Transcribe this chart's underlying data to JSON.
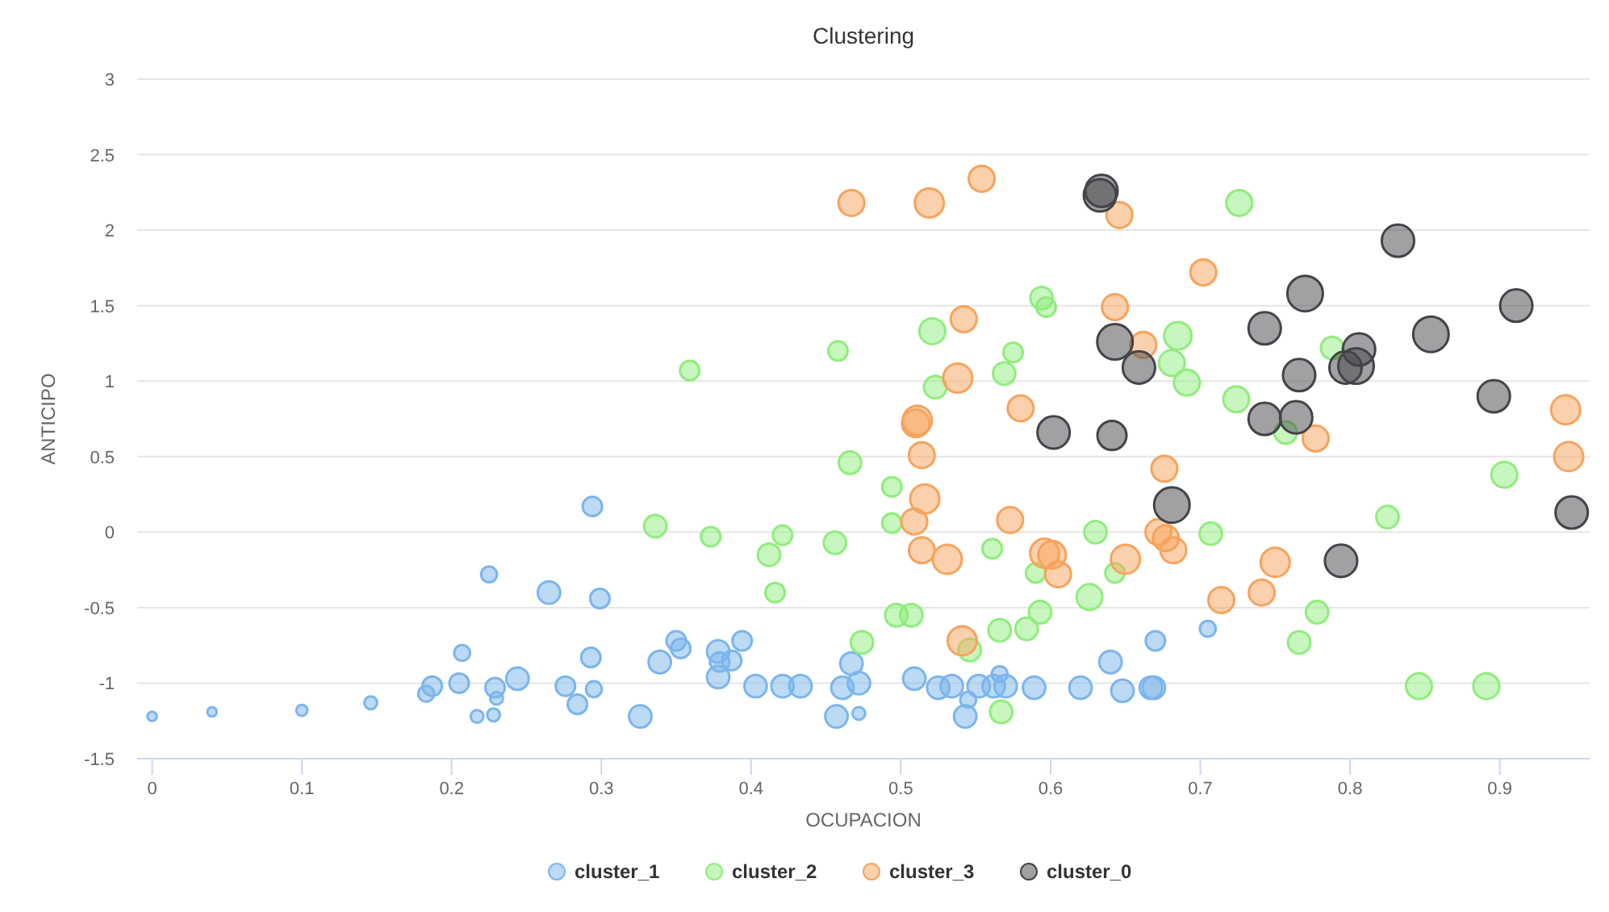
{
  "chart_data": {
    "type": "bubble",
    "title": "Clustering",
    "xlabel": "OCUPACION",
    "ylabel": "ANTICIPO",
    "xlim": [
      -0.01,
      0.96
    ],
    "xticks": [
      0,
      0.1,
      0.2,
      0.3,
      0.4,
      0.5,
      0.6,
      0.7,
      0.8,
      0.9
    ],
    "ylim": [
      -1.5,
      3
    ],
    "yticks": [
      -1.5,
      -1,
      -0.5,
      0,
      0.5,
      1,
      1.5,
      2,
      2.5,
      3
    ],
    "grid": "y",
    "legend": "bottom",
    "series": [
      {
        "name": "cluster_1",
        "color": "#7cb5ec",
        "x": [
          0,
          0.04,
          0.1,
          0.146,
          0.183,
          0.187,
          0.207,
          0.205,
          0.225,
          0.229,
          0.23,
          0.217,
          0.228,
          0.244,
          0.265,
          0.276,
          0.284,
          0.295,
          0.293,
          0.294,
          0.299,
          0.326,
          0.339,
          0.35,
          0.353,
          0.378,
          0.379,
          0.387,
          0.378,
          0.394,
          0.403,
          0.421,
          0.433,
          0.457,
          0.461,
          0.472,
          0.467,
          0.472,
          0.509,
          0.525,
          0.534,
          0.543,
          0.545,
          0.552,
          0.562,
          0.566,
          0.57,
          0.589,
          0.62,
          0.64,
          0.648,
          0.67,
          0.667,
          0.669,
          0.705
        ],
        "values": [
          -1.22,
          -1.19,
          -1.18,
          -1.13,
          -1.07,
          -1.02,
          -0.8,
          -1,
          -0.28,
          -1.03,
          -1.1,
          -1.22,
          -1.21,
          -0.97,
          -0.4,
          -1.02,
          -1.14,
          -1.04,
          -0.83,
          0.17,
          -0.44,
          -1.22,
          -0.86,
          -0.72,
          -0.77,
          -0.79,
          -0.86,
          -0.85,
          -0.96,
          -0.72,
          -1.02,
          -1.02,
          -1.02,
          -1.22,
          -1.03,
          -1,
          -0.87,
          -1.2,
          -0.97,
          -1.03,
          -1.02,
          -1.22,
          -1.11,
          -1.02,
          -1.02,
          -0.94,
          -1.02,
          -1.03,
          -1.03,
          -0.86,
          -1.05,
          -0.72,
          -1.03,
          -1.03,
          -0.64
        ],
        "sizes": [
          0.07,
          0.07,
          0.1,
          0.13,
          0.2,
          0.3,
          0.2,
          0.3,
          0.2,
          0.3,
          0.13,
          0.13,
          0.13,
          0.4,
          0.4,
          0.3,
          0.3,
          0.2,
          0.3,
          0.3,
          0.3,
          0.4,
          0.4,
          0.3,
          0.3,
          0.4,
          0.3,
          0.3,
          0.4,
          0.3,
          0.4,
          0.4,
          0.4,
          0.4,
          0.4,
          0.4,
          0.4,
          0.13,
          0.4,
          0.4,
          0.4,
          0.4,
          0.2,
          0.4,
          0.4,
          0.2,
          0.4,
          0.4,
          0.4,
          0.4,
          0.4,
          0.3,
          0.4,
          0.4,
          0.2
        ]
      },
      {
        "name": "cluster_2",
        "color": "#90ed7d",
        "x": [
          0.359,
          0.336,
          0.373,
          0.412,
          0.421,
          0.416,
          0.456,
          0.466,
          0.494,
          0.494,
          0.497,
          0.507,
          0.474,
          0.546,
          0.567,
          0.566,
          0.584,
          0.593,
          0.561,
          0.59,
          0.626,
          0.63,
          0.643,
          0.458,
          0.521,
          0.523,
          0.569,
          0.575,
          0.594,
          0.597,
          0.602,
          0.726,
          0.685,
          0.681,
          0.691,
          0.724,
          0.788,
          0.757,
          0.903,
          0.825,
          0.707,
          0.778,
          0.766,
          0.846,
          0.891
        ],
        "values": [
          1.07,
          0.04,
          -0.03,
          -0.15,
          -0.02,
          -0.4,
          -0.07,
          0.46,
          0.3,
          0.06,
          -0.55,
          -0.55,
          -0.73,
          -0.78,
          -1.19,
          -0.65,
          -0.64,
          -0.53,
          -0.11,
          -0.27,
          -0.43,
          0,
          -0.27,
          1.2,
          1.33,
          0.96,
          1.05,
          1.19,
          1.55,
          1.49,
          null,
          2.18,
          1.3,
          1.12,
          0.99,
          0.88,
          1.22,
          0.66,
          0.38,
          0.1,
          -0.01,
          -0.53,
          -0.73,
          -1.02,
          -1.02
        ],
        "sizes": [
          0.3,
          0.4,
          0.3,
          0.4,
          0.3,
          0.3,
          0.4,
          0.4,
          0.3,
          0.3,
          0.4,
          0.4,
          0.4,
          0.4,
          0.4,
          0.4,
          0.4,
          0.4,
          0.3,
          0.3,
          0.53,
          0.4,
          0.3,
          0.3,
          0.53,
          0.4,
          0.4,
          0.3,
          0.4,
          0.3,
          null,
          0.53,
          0.6,
          0.53,
          0.53,
          0.53,
          0.4,
          0.4,
          0.53,
          0.4,
          0.4,
          0.4,
          0.4,
          0.53,
          0.53
        ]
      },
      {
        "name": "cluster_3",
        "color": "#f7a35c",
        "x": [
          0.467,
          0.519,
          0.554,
          0.646,
          0.643,
          0.542,
          0.538,
          0.58,
          0.511,
          0.51,
          0.514,
          0.602,
          0.662,
          0.702,
          0.777,
          0.944,
          0.946,
          0.676,
          0.672,
          0.677,
          0.682,
          0.65,
          0.714,
          0.741,
          0.75,
          0.516,
          0.509,
          0.514,
          0.531,
          0.573,
          0.596,
          0.601,
          0.605,
          0.541
        ],
        "values": [
          2.18,
          2.18,
          2.34,
          2.1,
          1.49,
          1.41,
          1.02,
          0.82,
          0.74,
          0.72,
          0.51,
          null,
          1.24,
          1.72,
          0.62,
          0.81,
          0.5,
          0.42,
          0,
          -0.04,
          -0.12,
          -0.18,
          -0.45,
          -0.4,
          -0.2,
          0.22,
          0.07,
          -0.12,
          -0.18,
          0.08,
          -0.14,
          -0.15,
          -0.28,
          -0.72
        ],
        "sizes": [
          0.53,
          0.67,
          0.53,
          0.53,
          0.53,
          0.53,
          0.67,
          0.53,
          0.67,
          0.6,
          0.53,
          null,
          0.53,
          0.53,
          0.53,
          0.67,
          0.67,
          0.53,
          0.53,
          0.53,
          0.53,
          0.67,
          0.53,
          0.53,
          0.67,
          0.67,
          0.53,
          0.53,
          0.67,
          0.53,
          0.67,
          0.6,
          0.53,
          0.67
        ]
      },
      {
        "name": "cluster_0",
        "color": "#434348",
        "x": [
          0.634,
          0.633,
          0.643,
          0.659,
          0.602,
          0.641,
          0.832,
          0.77,
          0.743,
          0.854,
          0.911,
          0.806,
          0.797,
          0.804,
          0.766,
          0.896,
          0.743,
          0.764,
          0.681,
          0.794,
          0.948
        ],
        "values": [
          2.26,
          2.23,
          1.26,
          1.09,
          0.66,
          0.64,
          1.93,
          1.58,
          1.35,
          1.31,
          1.5,
          1.21,
          1.09,
          1.1,
          1.04,
          0.9,
          0.75,
          0.76,
          0.18,
          -0.19,
          0.13
        ],
        "sizes": [
          0.83,
          0.83,
          1,
          0.83,
          0.83,
          0.67,
          0.83,
          1,
          0.83,
          1,
          0.83,
          0.83,
          0.83,
          1,
          0.83,
          0.83,
          0.83,
          0.83,
          1,
          0.83,
          0.83
        ]
      }
    ]
  }
}
